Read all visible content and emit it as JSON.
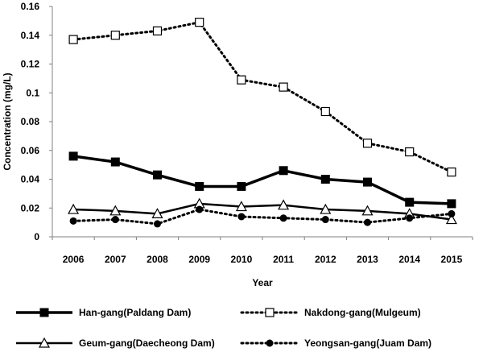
{
  "chart_data": {
    "type": "line",
    "title": "",
    "xlabel": "Year",
    "ylabel": "Concentration (mg/L)",
    "categories": [
      "2006",
      "2007",
      "2008",
      "2009",
      "2010",
      "2011",
      "2012",
      "2013",
      "2014",
      "2015"
    ],
    "ylim": [
      0,
      0.16
    ],
    "yticks": [
      "0",
      "0.02",
      "0.04",
      "0.06",
      "0.08",
      "0.1",
      "0.12",
      "0.14",
      "0.16"
    ],
    "grid": false,
    "legend_position": "bottom",
    "series": [
      {
        "name": "Han-gang(Paldang Dam)",
        "values": [
          0.056,
          0.052,
          0.043,
          0.035,
          0.035,
          0.046,
          0.04,
          0.038,
          0.024,
          0.023
        ],
        "line_style": "solid-thick",
        "marker": "filled-square",
        "color": "#000000"
      },
      {
        "name": "Nakdong-gang(Mulgeum)",
        "values": [
          0.137,
          0.14,
          0.143,
          0.149,
          0.109,
          0.104,
          0.087,
          0.065,
          0.059,
          0.045
        ],
        "line_style": "dotted",
        "marker": "open-square",
        "color": "#000000"
      },
      {
        "name": "Geum-gang(Daecheong Dam)",
        "values": [
          0.019,
          0.018,
          0.016,
          0.023,
          0.021,
          0.022,
          0.019,
          0.018,
          0.016,
          0.012
        ],
        "line_style": "solid",
        "marker": "open-triangle",
        "color": "#000000"
      },
      {
        "name": "Yeongsan-gang(Juam Dam)",
        "values": [
          0.011,
          0.012,
          0.009,
          0.019,
          0.014,
          0.013,
          0.012,
          0.01,
          0.013,
          0.016
        ],
        "line_style": "dotted",
        "marker": "filled-circle",
        "color": "#000000"
      }
    ]
  }
}
